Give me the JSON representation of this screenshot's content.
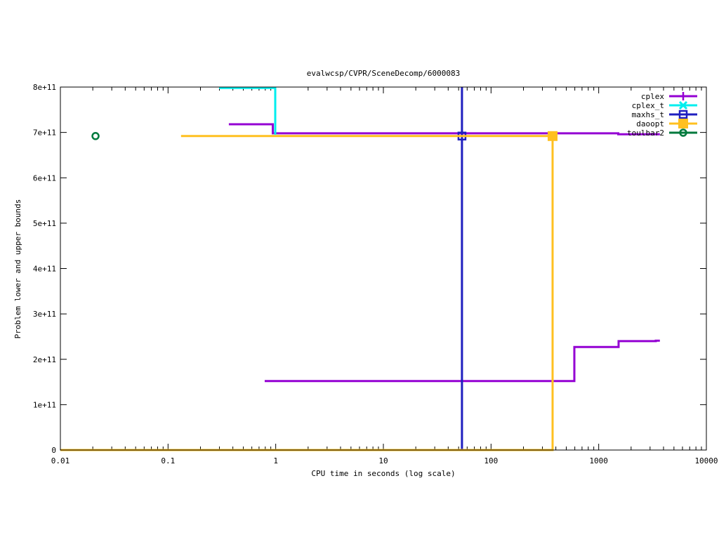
{
  "chart_data": {
    "type": "line",
    "title": "evalwcsp/CVPR/SceneDecomp/6000083",
    "xlabel": "CPU time in seconds (log scale)",
    "ylabel": "Problem lower and upper bounds",
    "xscale": "log",
    "xlim": [
      0.01,
      10000
    ],
    "ylim": [
      0,
      800000000000.0
    ],
    "xticks": [
      {
        "v": 0.01,
        "label": "0.01"
      },
      {
        "v": 0.1,
        "label": "0.1"
      },
      {
        "v": 1,
        "label": "1"
      },
      {
        "v": 10,
        "label": "10"
      },
      {
        "v": 100,
        "label": "100"
      },
      {
        "v": 1000,
        "label": "1000"
      },
      {
        "v": 10000,
        "label": "10000"
      }
    ],
    "yticks": [
      {
        "v": 0,
        "label": "0"
      },
      {
        "v": 100000000000.0,
        "label": "1e+11"
      },
      {
        "v": 200000000000.0,
        "label": "2e+11"
      },
      {
        "v": 300000000000.0,
        "label": "3e+11"
      },
      {
        "v": 400000000000.0,
        "label": "4e+11"
      },
      {
        "v": 500000000000.0,
        "label": "5e+11"
      },
      {
        "v": 600000000000.0,
        "label": "6e+11"
      },
      {
        "v": 700000000000.0,
        "label": "7e+11"
      },
      {
        "v": 800000000000.0,
        "label": "8e+11"
      }
    ],
    "grid": false,
    "legend_position": "top-right",
    "series": [
      {
        "name": "cplex",
        "color": "#9400d3",
        "marker": "plus",
        "lines": [
          [
            [
              0.367,
              718000000000.0
            ],
            [
              0.94,
              718000000000.0
            ],
            [
              0.94,
              698000000000.0
            ],
            [
              1520,
              698000000000.0
            ],
            [
              1520,
              696000000000.0
            ],
            [
              3700,
              696000000000.0
            ]
          ],
          [
            [
              0.79,
              152000000000.0
            ],
            [
              594,
              152000000000.0
            ],
            [
              594,
              227000000000.0
            ],
            [
              1530,
              227000000000.0
            ],
            [
              1530,
              240000000000.0
            ],
            [
              3390,
              240000000000.0
            ],
            [
              3390,
              241000000000.0
            ],
            [
              3700,
              241000000000.0
            ]
          ]
        ],
        "markers": []
      },
      {
        "name": "cplex_t",
        "color": "#00eeee",
        "marker": "cross",
        "lines": [
          [
            [
              0.298,
              798000000000.0
            ],
            [
              0.99,
              798000000000.0
            ],
            [
              0.99,
              695000000000.0
            ]
          ]
        ],
        "markers": []
      },
      {
        "name": "maxhs_t",
        "color": "#1f1fbf",
        "marker": "square",
        "lines": [
          [
            [
              53.7,
              800000000000.0
            ],
            [
              53.7,
              0
            ]
          ]
        ],
        "markers": [
          [
            53.7,
            692000000000.0
          ]
        ]
      },
      {
        "name": "daoopt",
        "color": "#ffc020",
        "marker": "filled-square",
        "lines": [
          [
            [
              0.132,
              692000000000.0
            ],
            [
              373,
              692000000000.0
            ]
          ],
          [
            [
              0.01,
              0
            ],
            [
              373,
              0
            ],
            [
              373,
              692000000000.0
            ]
          ]
        ],
        "markers": [
          [
            373,
            692000000000.0
          ]
        ]
      },
      {
        "name": "toulbar2",
        "color": "#007a3d",
        "marker": "circle",
        "lines": [],
        "markers": [
          [
            0.0212,
            692000000000.0
          ]
        ]
      }
    ]
  }
}
